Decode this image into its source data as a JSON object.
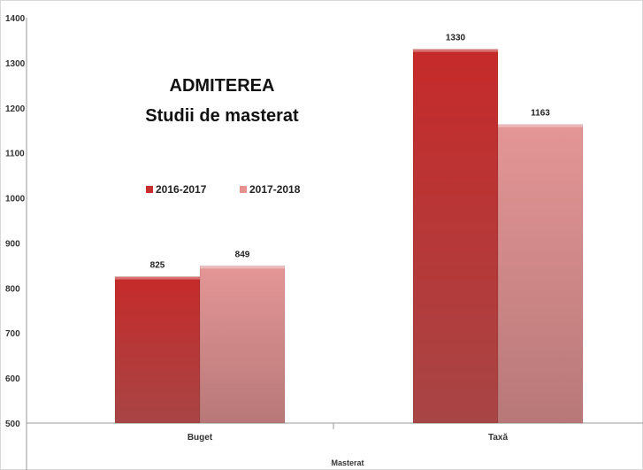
{
  "chart_data": {
    "type": "bar",
    "title": "ADMITEREA",
    "subtitle": "Studii de masterat",
    "xlabel": "Masterat",
    "ylabel": "",
    "categories": [
      "Buget",
      "Taxă"
    ],
    "series": [
      {
        "name": "2016-2017",
        "values": [
          825,
          1330
        ],
        "color": "#c8302f"
      },
      {
        "name": "2017-2018",
        "values": [
          849,
          1163
        ],
        "color": "#e69090"
      }
    ],
    "ylim": [
      500,
      1400
    ],
    "yticks": [
      500,
      600,
      700,
      800,
      900,
      1000,
      1100,
      1200,
      1300,
      1400
    ],
    "yticks_labels": [
      "500",
      "600",
      "700",
      "800",
      "900",
      "1000",
      "1100",
      "1200",
      "1300",
      "1400"
    ],
    "data_labels": [
      [
        "825",
        "1330"
      ],
      [
        "849",
        "1163"
      ]
    ],
    "grid": false,
    "legend_position": "left, below title"
  }
}
